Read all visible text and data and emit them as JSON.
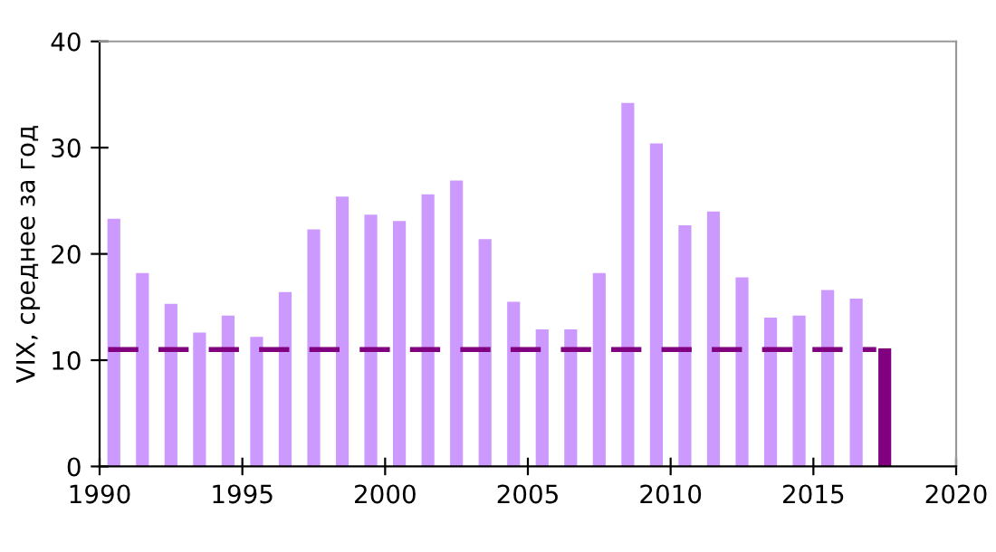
{
  "chart_data": {
    "type": "bar",
    "ylabel": "VIX, среднее за год",
    "xlim": [
      1990,
      2020
    ],
    "xticks": [
      1990,
      1995,
      2000,
      2005,
      2010,
      2015,
      2020
    ],
    "ylim": [
      0,
      40
    ],
    "yticks": [
      0,
      10,
      20,
      30,
      40
    ],
    "grid": false,
    "legend": false,
    "series": [
      {
        "x": [
          1990.5,
          1991.5,
          1992.5,
          1993.5,
          1994.5,
          1995.5,
          1996.5,
          1997.5,
          1998.5,
          1999.5,
          2000.5,
          2001.5,
          2002.5,
          2003.5,
          2004.5,
          2005.5,
          2006.5,
          2007.5,
          2008.5,
          2009.5,
          2010.5,
          2011.5,
          2012.5,
          2013.5,
          2014.5,
          2015.5,
          2016.5,
          2017.5
        ],
        "values": [
          23.3,
          18.2,
          15.3,
          12.6,
          14.2,
          12.2,
          16.4,
          22.3,
          25.4,
          23.7,
          23.1,
          25.6,
          26.9,
          21.4,
          15.5,
          12.9,
          12.9,
          18.2,
          34.2,
          30.4,
          22.7,
          24.0,
          17.8,
          14.0,
          14.2,
          16.6,
          15.8,
          11.1
        ],
        "colors": [
          "#cc99ff",
          "#cc99ff",
          "#cc99ff",
          "#cc99ff",
          "#cc99ff",
          "#cc99ff",
          "#cc99ff",
          "#cc99ff",
          "#cc99ff",
          "#cc99ff",
          "#cc99ff",
          "#cc99ff",
          "#cc99ff",
          "#cc99ff",
          "#cc99ff",
          "#cc99ff",
          "#cc99ff",
          "#cc99ff",
          "#cc99ff",
          "#cc99ff",
          "#cc99ff",
          "#cc99ff",
          "#cc99ff",
          "#cc99ff",
          "#cc99ff",
          "#cc99ff",
          "#cc99ff",
          "#800080"
        ]
      },
      {
        "type": "line",
        "x": [
          1990.3,
          2017.2
        ],
        "values": [
          11.0,
          11.0
        ],
        "color": "#800080",
        "line_style": "dashed"
      }
    ]
  }
}
